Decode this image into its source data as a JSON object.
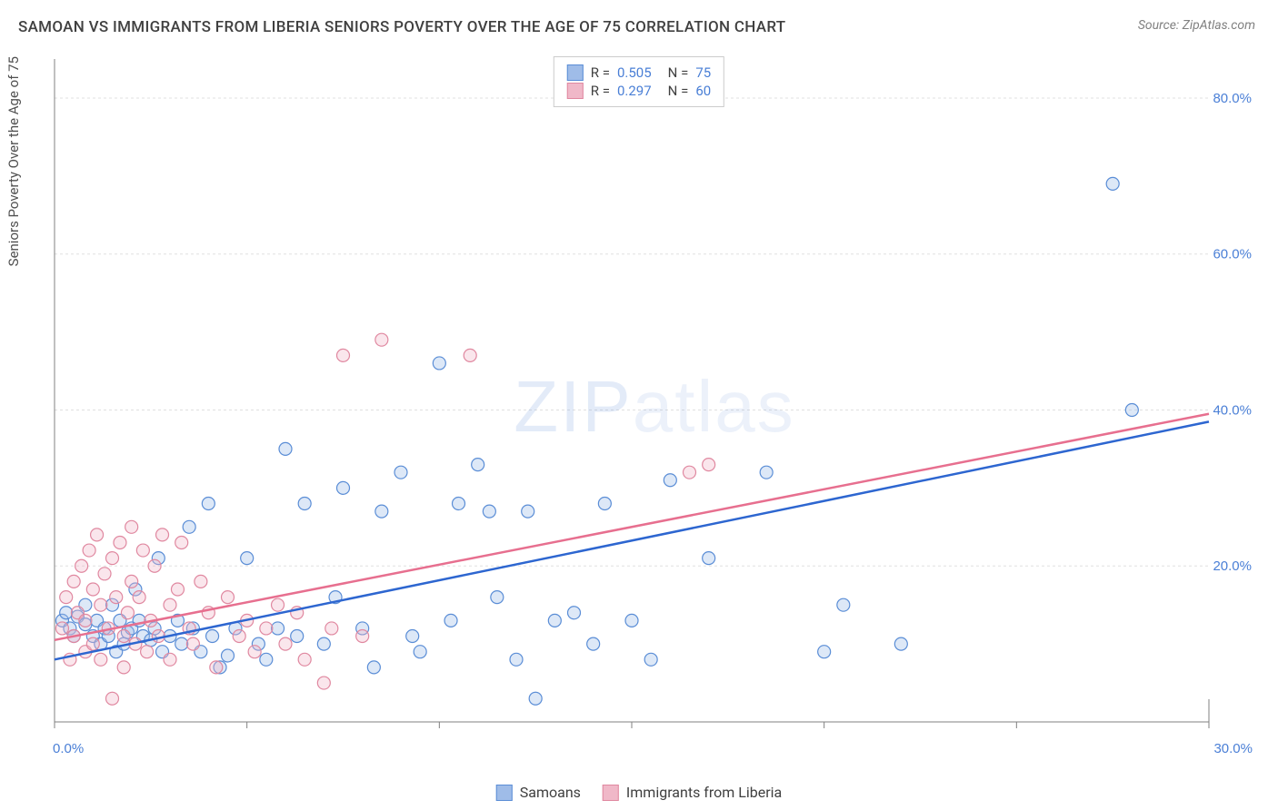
{
  "title": "SAMOAN VS IMMIGRANTS FROM LIBERIA SENIORS POVERTY OVER THE AGE OF 75 CORRELATION CHART",
  "source": "Source: ZipAtlas.com",
  "watermark": "ZIPatlas",
  "ylabel": "Seniors Poverty Over the Age of 75",
  "chart": {
    "type": "scatter",
    "background_color": "#ffffff",
    "grid_color": "#e0e0e0",
    "axis_line_color": "#808080",
    "xlim": [
      0,
      30
    ],
    "ylim": [
      0,
      85
    ],
    "x_ticks": [
      0,
      5,
      10,
      15,
      20,
      25,
      30
    ],
    "x_tick_labels_shown": {
      "0": "0.0%",
      "30": "30.0%"
    },
    "y_ticks": [
      20,
      40,
      60,
      80
    ],
    "y_tick_labels": {
      "20": "20.0%",
      "40": "40.0%",
      "60": "60.0%",
      "80": "80.0%"
    },
    "tick_label_color": "#4a7fd6",
    "tick_label_fontsize": 15,
    "marker_radius": 7,
    "marker_stroke_width": 1.2,
    "marker_fill_opacity": 0.35,
    "trend_line_width": 2.5,
    "series": [
      {
        "name": "Samoans",
        "fill": "#9fbce8",
        "stroke": "#5a8dd6",
        "trend_color": "#2d66d0",
        "R": "0.505",
        "N": "75",
        "trend": {
          "x1": 0,
          "y1": 8,
          "x2": 30,
          "y2": 38.5
        },
        "points": [
          [
            0.2,
            13
          ],
          [
            0.3,
            14
          ],
          [
            0.4,
            12
          ],
          [
            0.5,
            11
          ],
          [
            0.6,
            13.5
          ],
          [
            0.8,
            12.5
          ],
          [
            0.8,
            15
          ],
          [
            1.0,
            11
          ],
          [
            1.1,
            13
          ],
          [
            1.2,
            10
          ],
          [
            1.3,
            12
          ],
          [
            1.4,
            11
          ],
          [
            1.5,
            15
          ],
          [
            1.6,
            9
          ],
          [
            1.7,
            13
          ],
          [
            1.8,
            10
          ],
          [
            1.9,
            11.5
          ],
          [
            2.0,
            12
          ],
          [
            2.1,
            17
          ],
          [
            2.2,
            13
          ],
          [
            2.3,
            11
          ],
          [
            2.5,
            10.5
          ],
          [
            2.6,
            12
          ],
          [
            2.7,
            21
          ],
          [
            2.8,
            9
          ],
          [
            3.0,
            11
          ],
          [
            3.2,
            13
          ],
          [
            3.3,
            10
          ],
          [
            3.5,
            25
          ],
          [
            3.6,
            12
          ],
          [
            3.8,
            9
          ],
          [
            4.0,
            28
          ],
          [
            4.1,
            11
          ],
          [
            4.3,
            7
          ],
          [
            4.5,
            8.5
          ],
          [
            4.7,
            12
          ],
          [
            5.0,
            21
          ],
          [
            5.3,
            10
          ],
          [
            5.5,
            8
          ],
          [
            5.8,
            12
          ],
          [
            6.0,
            35
          ],
          [
            6.3,
            11
          ],
          [
            6.5,
            28
          ],
          [
            7.0,
            10
          ],
          [
            7.3,
            16
          ],
          [
            7.5,
            30
          ],
          [
            8.0,
            12
          ],
          [
            8.3,
            7
          ],
          [
            8.5,
            27
          ],
          [
            9.0,
            32
          ],
          [
            9.3,
            11
          ],
          [
            9.5,
            9
          ],
          [
            10.0,
            46
          ],
          [
            10.3,
            13
          ],
          [
            10.5,
            28
          ],
          [
            11.0,
            33
          ],
          [
            11.3,
            27
          ],
          [
            11.5,
            16
          ],
          [
            12.0,
            8
          ],
          [
            12.3,
            27
          ],
          [
            12.5,
            3
          ],
          [
            13.0,
            13
          ],
          [
            13.5,
            14
          ],
          [
            14.0,
            10
          ],
          [
            14.3,
            28
          ],
          [
            15.0,
            13
          ],
          [
            15.5,
            8
          ],
          [
            16.0,
            31
          ],
          [
            17.0,
            21
          ],
          [
            18.5,
            32
          ],
          [
            20.0,
            9
          ],
          [
            20.5,
            15
          ],
          [
            22.0,
            10
          ],
          [
            27.5,
            69
          ],
          [
            28.0,
            40
          ]
        ]
      },
      {
        "name": "Immigrants from Liberia",
        "fill": "#f0b8c8",
        "stroke": "#e088a0",
        "trend_color": "#e76f8f",
        "R": "0.297",
        "N": "60",
        "trend": {
          "x1": 0,
          "y1": 10.5,
          "x2": 30,
          "y2": 39.5
        },
        "points": [
          [
            0.2,
            12
          ],
          [
            0.3,
            16
          ],
          [
            0.4,
            8
          ],
          [
            0.5,
            18
          ],
          [
            0.5,
            11
          ],
          [
            0.6,
            14
          ],
          [
            0.7,
            20
          ],
          [
            0.8,
            9
          ],
          [
            0.8,
            13
          ],
          [
            0.9,
            22
          ],
          [
            1.0,
            17
          ],
          [
            1.0,
            10
          ],
          [
            1.1,
            24
          ],
          [
            1.2,
            15
          ],
          [
            1.2,
            8
          ],
          [
            1.3,
            19
          ],
          [
            1.4,
            12
          ],
          [
            1.5,
            21
          ],
          [
            1.5,
            3
          ],
          [
            1.6,
            16
          ],
          [
            1.7,
            23
          ],
          [
            1.8,
            11
          ],
          [
            1.8,
            7
          ],
          [
            1.9,
            14
          ],
          [
            2.0,
            18
          ],
          [
            2.0,
            25
          ],
          [
            2.1,
            10
          ],
          [
            2.2,
            16
          ],
          [
            2.3,
            22
          ],
          [
            2.4,
            9
          ],
          [
            2.5,
            13
          ],
          [
            2.6,
            20
          ],
          [
            2.7,
            11
          ],
          [
            2.8,
            24
          ],
          [
            3.0,
            15
          ],
          [
            3.0,
            8
          ],
          [
            3.2,
            17
          ],
          [
            3.3,
            23
          ],
          [
            3.5,
            12
          ],
          [
            3.6,
            10
          ],
          [
            3.8,
            18
          ],
          [
            4.0,
            14
          ],
          [
            4.2,
            7
          ],
          [
            4.5,
            16
          ],
          [
            4.8,
            11
          ],
          [
            5.0,
            13
          ],
          [
            5.2,
            9
          ],
          [
            5.5,
            12
          ],
          [
            5.8,
            15
          ],
          [
            6.0,
            10
          ],
          [
            6.3,
            14
          ],
          [
            6.5,
            8
          ],
          [
            7.0,
            5
          ],
          [
            7.2,
            12
          ],
          [
            7.5,
            47
          ],
          [
            8.0,
            11
          ],
          [
            8.5,
            49
          ],
          [
            10.8,
            47
          ],
          [
            16.5,
            32
          ],
          [
            17.0,
            33
          ]
        ]
      }
    ],
    "legend_bottom": [
      {
        "label": "Samoans",
        "fill": "#9fbce8",
        "stroke": "#5a8dd6"
      },
      {
        "label": "Immigrants from Liberia",
        "fill": "#f0b8c8",
        "stroke": "#e088a0"
      }
    ]
  }
}
